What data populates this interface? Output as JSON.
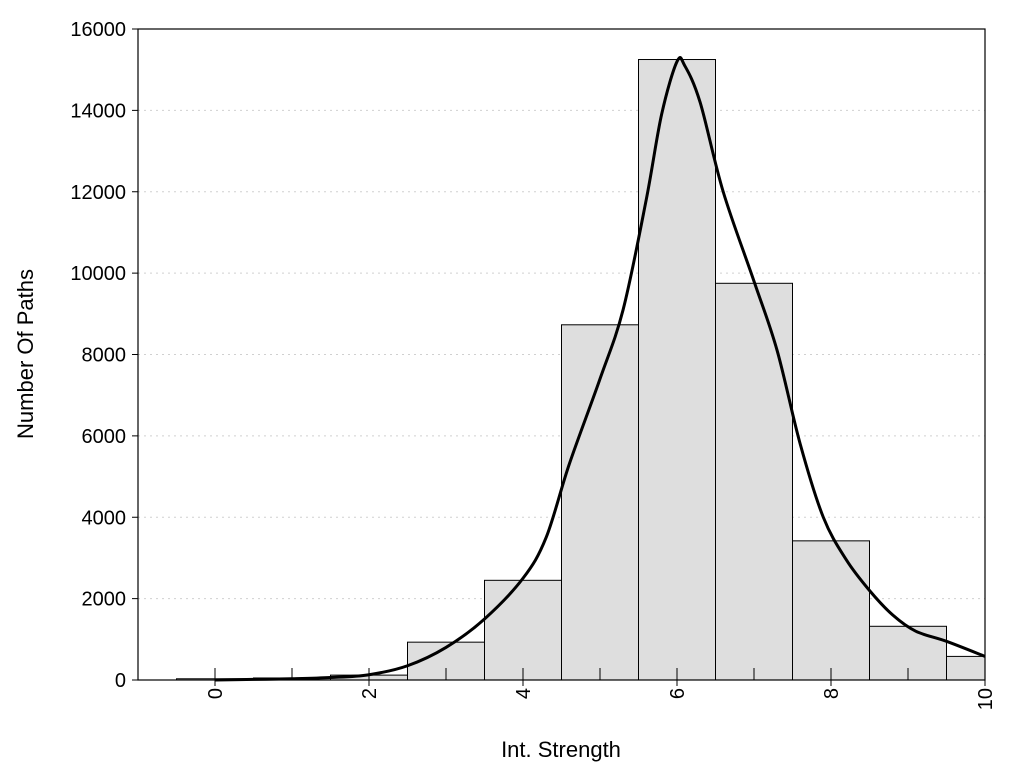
{
  "chart_data": {
    "type": "bar",
    "title": "",
    "xlabel": "Int. Strength",
    "ylabel": "Number Of Paths",
    "xlim": [
      -1,
      10
    ],
    "ylim": [
      0,
      16000
    ],
    "xticks": [
      0,
      2,
      4,
      6,
      8,
      10
    ],
    "yticks": [
      0,
      2000,
      4000,
      6000,
      8000,
      10000,
      12000,
      14000,
      16000
    ],
    "grid": "horizontal dotted",
    "bar_color": "#dedede",
    "bins": [
      {
        "x": 0,
        "value": 30
      },
      {
        "x": 1,
        "value": 50
      },
      {
        "x": 2,
        "value": 120
      },
      {
        "x": 3,
        "value": 930
      },
      {
        "x": 4,
        "value": 2450
      },
      {
        "x": 5,
        "value": 8730
      },
      {
        "x": 6,
        "value": 15250
      },
      {
        "x": 7,
        "value": 9750
      },
      {
        "x": 8,
        "value": 3420
      },
      {
        "x": 9,
        "value": 1320
      },
      {
        "x": 10,
        "value": 580
      }
    ],
    "curve": [
      [
        0,
        0
      ],
      [
        0.5,
        15
      ],
      [
        1,
        30
      ],
      [
        1.5,
        60
      ],
      [
        2,
        130
      ],
      [
        2.5,
        350
      ],
      [
        3,
        800
      ],
      [
        3.5,
        1500
      ],
      [
        4,
        2500
      ],
      [
        4.3,
        3500
      ],
      [
        4.6,
        5300
      ],
      [
        5,
        7400
      ],
      [
        5.3,
        9100
      ],
      [
        5.6,
        11800
      ],
      [
        5.8,
        13900
      ],
      [
        6,
        15200
      ],
      [
        6.1,
        15100
      ],
      [
        6.3,
        14200
      ],
      [
        6.6,
        12000
      ],
      [
        7,
        9800
      ],
      [
        7.3,
        8100
      ],
      [
        7.6,
        5800
      ],
      [
        7.9,
        4000
      ],
      [
        8.2,
        2950
      ],
      [
        8.5,
        2200
      ],
      [
        8.8,
        1600
      ],
      [
        9.1,
        1200
      ],
      [
        9.5,
        950
      ],
      [
        10,
        580
      ]
    ]
  }
}
